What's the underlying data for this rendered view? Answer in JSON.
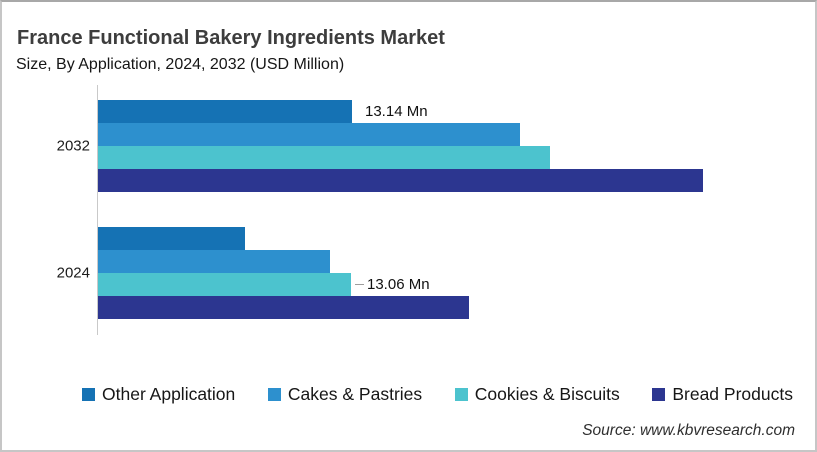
{
  "header": {
    "title": "France Functional Bakery Ingredients Market",
    "subtitle": "Size, By Application, 2024, 2032 (USD Million)"
  },
  "footer": {
    "source": "Source: www.kbvresearch.com"
  },
  "chart_data": {
    "type": "bar",
    "orientation": "horizontal",
    "title": "France Functional Bakery Ingredients Market",
    "subtitle": "Size, By Application, 2024, 2032 (USD Million)",
    "unit": "USD Million",
    "xlim": [
      0,
      36.2
    ],
    "grid": false,
    "legend_position": "bottom",
    "axis_color": "#c9c9c9",
    "series": [
      {
        "name": "Other Application",
        "color": "#1572b4"
      },
      {
        "name": "Cakes & Pastries",
        "color": "#2d90ce"
      },
      {
        "name": "Cookies & Biscuits",
        "color": "#4cc3ce"
      },
      {
        "name": "Bread Products",
        "color": "#2c3690"
      }
    ],
    "categories": [
      "2032",
      "2024"
    ],
    "groups": [
      {
        "label": "2032",
        "bars": [
          {
            "series": "Other Application",
            "value": 13.14,
            "data_label": "13.14 Mn"
          },
          {
            "series": "Cakes & Pastries",
            "value": 21.8
          },
          {
            "series": "Cookies & Biscuits",
            "value": 23.4
          },
          {
            "series": "Bread Products",
            "value": 31.3
          }
        ]
      },
      {
        "label": "2024",
        "bars": [
          {
            "series": "Other Application",
            "value": 7.6
          },
          {
            "series": "Cakes & Pastries",
            "value": 12.0
          },
          {
            "series": "Cookies & Biscuits",
            "value": 13.06,
            "data_label": "13.06 Mn",
            "leader_line": true
          },
          {
            "series": "Bread Products",
            "value": 19.2
          }
        ]
      }
    ]
  }
}
